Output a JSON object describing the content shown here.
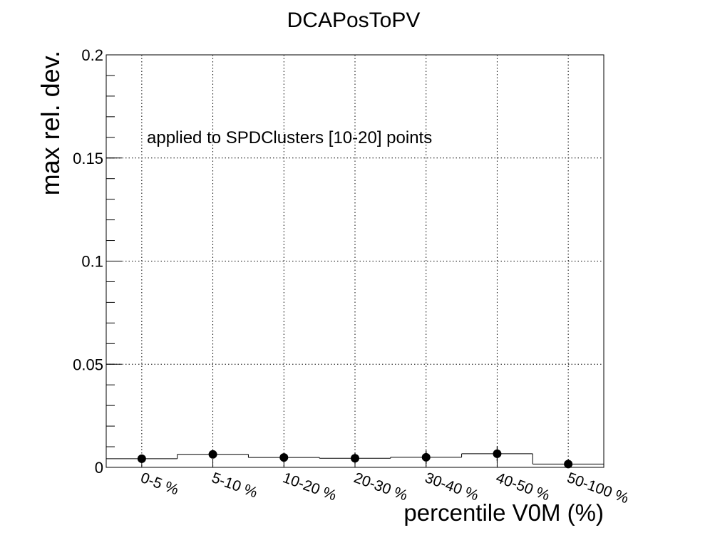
{
  "chart_data": {
    "type": "scatter",
    "title": "DCAPosToPV",
    "xlabel": "percentile V0M (%)",
    "ylabel": "max rel. dev.",
    "ylim": [
      0,
      0.2
    ],
    "yticks": [
      "0",
      "0.05",
      "0.1",
      "0.15",
      "0.2"
    ],
    "categories": [
      "0-5 %",
      "5-10 %",
      "10-20 %",
      "20-30 %",
      "30-40 %",
      "40-50 %",
      "50-100 %"
    ],
    "values": [
      0.0042,
      0.0063,
      0.0048,
      0.0044,
      0.0049,
      0.0066,
      0.0016
    ],
    "errors": [
      0.0008,
      0.0012,
      0.0012,
      0.0026,
      0.0033,
      0.0036,
      0.001
    ],
    "annotation": "applied to SPDClusters [10-20] points",
    "grid": true,
    "marker_color": "#000000"
  }
}
